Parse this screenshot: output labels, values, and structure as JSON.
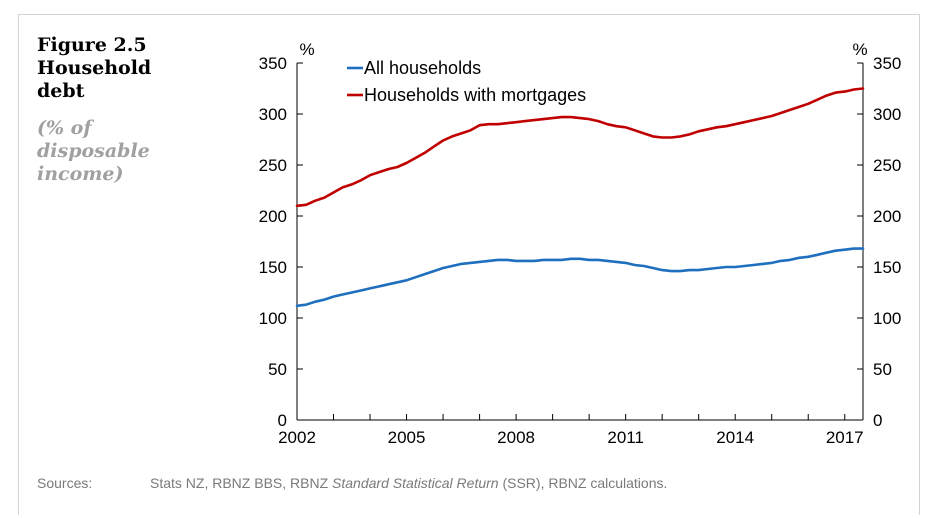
{
  "figure": {
    "number": "Figure 2.5",
    "title_lines": [
      "Household",
      "debt"
    ],
    "subtitle_lines": [
      "(% of",
      "disposable",
      "income)"
    ]
  },
  "sources": {
    "label": "Sources:",
    "text_1": "Stats NZ, RBNZ BBS, RBNZ ",
    "text_italic": "Standard Statistical Return",
    "text_2": " (SSR), RBNZ calculations."
  },
  "chart_data": {
    "type": "line",
    "title": "",
    "xlabel": "",
    "ylabel_left": "%",
    "ylabel_right": "%",
    "xlim": [
      2002,
      2017.5
    ],
    "ylim": [
      0,
      350
    ],
    "x_ticks": [
      "2002",
      "2005",
      "2008",
      "2011",
      "2014",
      "2017"
    ],
    "y_ticks": [
      "0",
      "50",
      "100",
      "150",
      "200",
      "250",
      "300",
      "350"
    ],
    "grid": false,
    "legend_position": "top-left",
    "colors": {
      "all": "#1f6fbf",
      "mortgages": "#c00000",
      "axis": "#000000"
    },
    "series": [
      {
        "name": "All households",
        "color": "#1f6fbf",
        "x": [
          2002,
          2002.25,
          2002.5,
          2002.75,
          2003,
          2003.25,
          2003.5,
          2003.75,
          2004,
          2004.25,
          2004.5,
          2004.75,
          2005,
          2005.25,
          2005.5,
          2005.75,
          2006,
          2006.25,
          2006.5,
          2006.75,
          2007,
          2007.25,
          2007.5,
          2007.75,
          2008,
          2008.25,
          2008.5,
          2008.75,
          2009,
          2009.25,
          2009.5,
          2009.75,
          2010,
          2010.25,
          2010.5,
          2010.75,
          2011,
          2011.25,
          2011.5,
          2011.75,
          2012,
          2012.25,
          2012.5,
          2012.75,
          2013,
          2013.25,
          2013.5,
          2013.75,
          2014,
          2014.25,
          2014.5,
          2014.75,
          2015,
          2015.25,
          2015.5,
          2015.75,
          2016,
          2016.25,
          2016.5,
          2016.75,
          2017,
          2017.25,
          2017.5
        ],
        "y": [
          112,
          113,
          116,
          118,
          121,
          123,
          125,
          127,
          129,
          131,
          133,
          135,
          137,
          140,
          143,
          146,
          149,
          151,
          153,
          154,
          155,
          156,
          157,
          157,
          156,
          156,
          156,
          157,
          157,
          157,
          158,
          158,
          157,
          157,
          156,
          155,
          154,
          152,
          151,
          149,
          147,
          146,
          146,
          147,
          147,
          148,
          149,
          150,
          150,
          151,
          152,
          153,
          154,
          156,
          157,
          159,
          160,
          162,
          164,
          166,
          167,
          168,
          168
        ]
      },
      {
        "name": "Households with mortgages",
        "color": "#c00000",
        "x": [
          2002,
          2002.25,
          2002.5,
          2002.75,
          2003,
          2003.25,
          2003.5,
          2003.75,
          2004,
          2004.25,
          2004.5,
          2004.75,
          2005,
          2005.25,
          2005.5,
          2005.75,
          2006,
          2006.25,
          2006.5,
          2006.75,
          2007,
          2007.25,
          2007.5,
          2007.75,
          2008,
          2008.25,
          2008.5,
          2008.75,
          2009,
          2009.25,
          2009.5,
          2009.75,
          2010,
          2010.25,
          2010.5,
          2010.75,
          2011,
          2011.25,
          2011.5,
          2011.75,
          2012,
          2012.25,
          2012.5,
          2012.75,
          2013,
          2013.25,
          2013.5,
          2013.75,
          2014,
          2014.25,
          2014.5,
          2014.75,
          2015,
          2015.25,
          2015.5,
          2015.75,
          2016,
          2016.25,
          2016.5,
          2016.75,
          2017,
          2017.25,
          2017.5
        ],
        "y": [
          210,
          211,
          215,
          218,
          223,
          228,
          231,
          235,
          240,
          243,
          246,
          248,
          252,
          257,
          262,
          268,
          274,
          278,
          281,
          284,
          289,
          290,
          290,
          291,
          292,
          293,
          294,
          295,
          296,
          297,
          297,
          296,
          295,
          293,
          290,
          288,
          287,
          284,
          281,
          278,
          277,
          277,
          278,
          280,
          283,
          285,
          287,
          288,
          290,
          292,
          294,
          296,
          298,
          301,
          304,
          307,
          310,
          314,
          318,
          321,
          322,
          324,
          325
        ]
      }
    ]
  }
}
